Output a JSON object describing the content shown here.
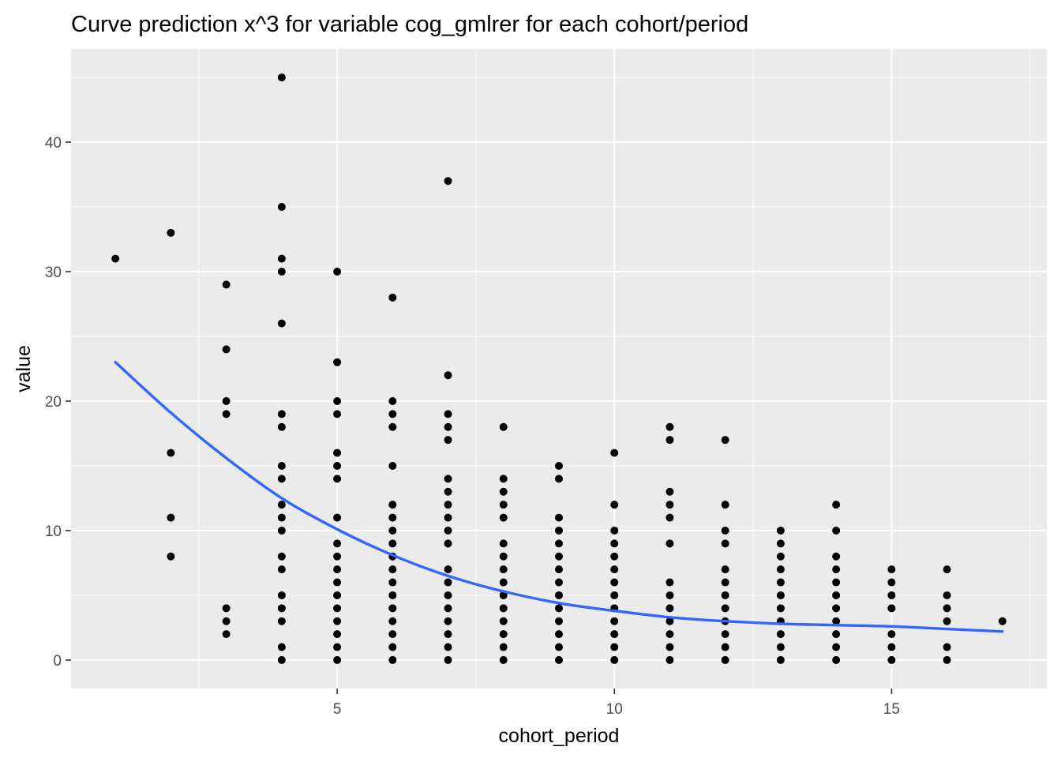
{
  "chart_data": {
    "type": "scatter",
    "title": "Curve prediction x^3  for variable cog_gmlrer for each cohort/period",
    "xlabel": "cohort_period",
    "ylabel": "value",
    "xlim": [
      0.2,
      17.8
    ],
    "ylim": [
      -2.2,
      47.2
    ],
    "x_ticks": [
      5,
      10,
      15
    ],
    "x_minor_ticks": [
      2.5,
      7.5,
      12.5,
      17.5
    ],
    "y_ticks": [
      0,
      10,
      20,
      30,
      40
    ],
    "y_minor_ticks": [
      5,
      15,
      25,
      35,
      45
    ],
    "grid": true,
    "background": "#EBEBEB",
    "point_color": "#000000",
    "fit_color": "#3366FF",
    "points": [
      {
        "x": 1,
        "values": [
          31
        ]
      },
      {
        "x": 2,
        "values": [
          33,
          16,
          11,
          8
        ]
      },
      {
        "x": 3,
        "values": [
          29,
          24,
          20,
          19,
          4,
          3,
          2
        ]
      },
      {
        "x": 4,
        "values": [
          45,
          35,
          31,
          30,
          26,
          19,
          18,
          15,
          14,
          12,
          11,
          10,
          8,
          7,
          5,
          4,
          3,
          1,
          0
        ]
      },
      {
        "x": 5,
        "values": [
          30,
          23,
          20,
          19,
          16,
          15,
          14,
          11,
          9,
          8,
          7,
          6,
          5,
          4,
          3,
          2,
          1,
          0
        ]
      },
      {
        "x": 6,
        "values": [
          28,
          20,
          19,
          18,
          15,
          12,
          11,
          10,
          9,
          8,
          7,
          6,
          5,
          4,
          3,
          2,
          1,
          0
        ]
      },
      {
        "x": 7,
        "values": [
          37,
          22,
          19,
          18,
          17,
          14,
          13,
          12,
          11,
          10,
          9,
          7,
          6,
          5,
          4,
          3,
          2,
          1,
          0
        ]
      },
      {
        "x": 8,
        "values": [
          18,
          14,
          13,
          12,
          11,
          9,
          8,
          7,
          6,
          5,
          4,
          3,
          2,
          1,
          0
        ]
      },
      {
        "x": 9,
        "values": [
          15,
          14,
          11,
          10,
          9,
          8,
          7,
          6,
          5,
          4,
          3,
          2,
          1,
          0
        ]
      },
      {
        "x": 10,
        "values": [
          16,
          12,
          10,
          9,
          8,
          7,
          6,
          5,
          4,
          3,
          2,
          1,
          0
        ]
      },
      {
        "x": 11,
        "values": [
          18,
          17,
          13,
          12,
          11,
          9,
          6,
          5,
          4,
          3,
          2,
          1,
          0
        ]
      },
      {
        "x": 12,
        "values": [
          17,
          12,
          10,
          9,
          7,
          6,
          5,
          4,
          3,
          2,
          1,
          0
        ]
      },
      {
        "x": 13,
        "values": [
          10,
          9,
          8,
          7,
          6,
          5,
          4,
          3,
          2,
          1,
          0
        ]
      },
      {
        "x": 14,
        "values": [
          12,
          10,
          8,
          7,
          6,
          5,
          4,
          3,
          2,
          1,
          0
        ]
      },
      {
        "x": 15,
        "values": [
          7,
          6,
          5,
          4,
          2,
          1,
          0
        ]
      },
      {
        "x": 16,
        "values": [
          7,
          5,
          4,
          3,
          1,
          0
        ]
      },
      {
        "x": 17,
        "values": [
          3
        ]
      }
    ],
    "fit_curve": {
      "x": [
        1,
        2,
        3,
        4,
        5,
        6,
        7,
        8,
        9,
        10,
        11,
        12,
        13,
        14,
        15,
        16,
        17
      ],
      "y": [
        23.0,
        19.1,
        15.6,
        12.5,
        10.1,
        8.1,
        6.5,
        5.3,
        4.4,
        3.8,
        3.3,
        3.0,
        2.8,
        2.7,
        2.6,
        2.4,
        2.2
      ]
    }
  }
}
